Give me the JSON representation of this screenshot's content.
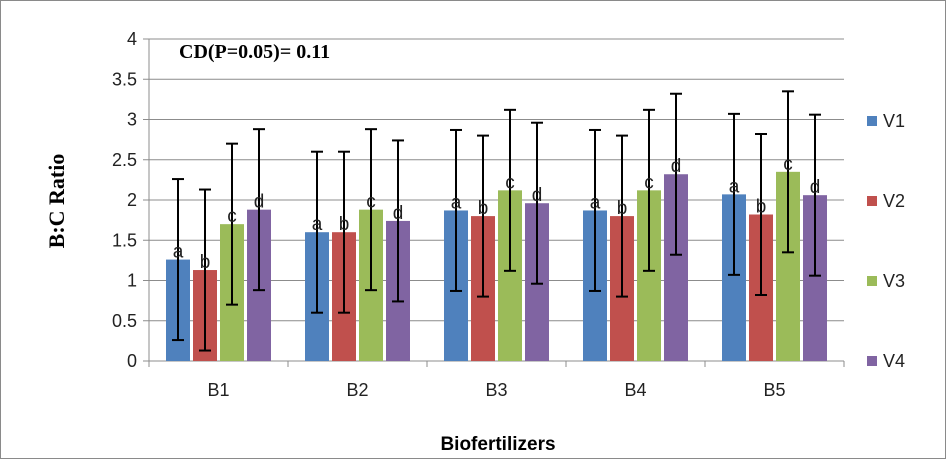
{
  "chart_data": {
    "type": "bar",
    "title": "",
    "annotation": "CD(P=0.05)= 0.11",
    "xlabel": "Biofertilizers",
    "ylabel": "B:C Ratio",
    "ylim": [
      0,
      4
    ],
    "yticks": [
      "0",
      "0.5",
      "1",
      "1.5",
      "2",
      "2.5",
      "3",
      "3.5",
      "4"
    ],
    "grid": true,
    "legend_position": "right",
    "categories": [
      "B1",
      "B2",
      "B3",
      "B4",
      "B5"
    ],
    "series": [
      {
        "name": "V1",
        "color": "#4F81BD",
        "letter": "a",
        "values": [
          1.26,
          1.6,
          1.87,
          1.87,
          2.07
        ],
        "errors": [
          1.0,
          1.0,
          1.0,
          1.0,
          1.0
        ]
      },
      {
        "name": "V2",
        "color": "#C0504D",
        "letter": "b",
        "values": [
          1.13,
          1.6,
          1.8,
          1.8,
          1.82
        ],
        "errors": [
          1.0,
          1.0,
          1.0,
          1.0,
          1.0
        ]
      },
      {
        "name": "V3",
        "color": "#9BBB59",
        "letter": "c",
        "values": [
          1.7,
          1.88,
          2.12,
          2.12,
          2.35
        ],
        "errors": [
          1.0,
          1.0,
          1.0,
          1.0,
          1.0
        ]
      },
      {
        "name": "V4",
        "color": "#8064A2",
        "letter": "d",
        "values": [
          1.88,
          1.74,
          1.96,
          2.32,
          2.06
        ],
        "errors": [
          1.0,
          1.0,
          1.0,
          1.0,
          1.0
        ]
      }
    ]
  }
}
